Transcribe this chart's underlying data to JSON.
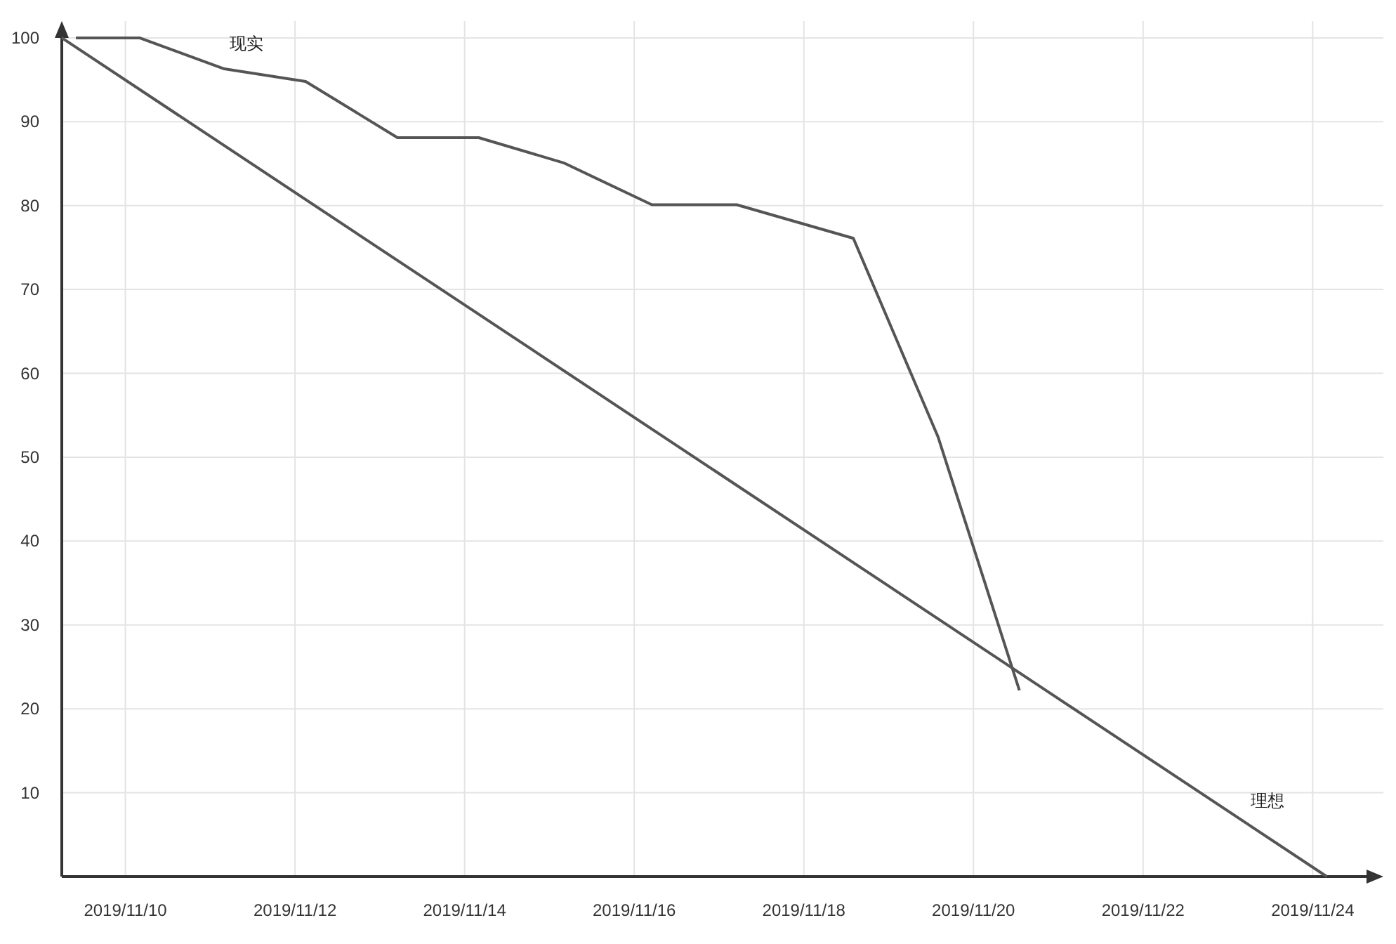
{
  "chart_data": {
    "type": "line",
    "grid": true,
    "legend": false,
    "marker": "none",
    "line_style": "solid",
    "xlim": [
      "2019-11-09T06:00",
      "2019-11-24T20:00"
    ],
    "ylim": [
      0,
      102
    ],
    "xticks": [
      {
        "value": "2019-11-10",
        "label": "2019/11/10"
      },
      {
        "value": "2019-11-12",
        "label": "2019/11/12"
      },
      {
        "value": "2019-11-14",
        "label": "2019/11/14"
      },
      {
        "value": "2019-11-16",
        "label": "2019/11/16"
      },
      {
        "value": "2019-11-18",
        "label": "2019/11/18"
      },
      {
        "value": "2019-11-20",
        "label": "2019/11/20"
      },
      {
        "value": "2019-11-22",
        "label": "2019/11/22"
      },
      {
        "value": "2019-11-24",
        "label": "2019/11/24"
      }
    ],
    "yticks": [
      10,
      20,
      30,
      40,
      50,
      60,
      70,
      80,
      90,
      100
    ],
    "series": [
      {
        "name": "现实",
        "color": "#555555",
        "x": [
          "2019-11-09T10:00",
          "2019-11-10T04:00",
          "2019-11-11T04:00",
          "2019-11-12T03:00",
          "2019-11-13T05:00",
          "2019-11-14T04:00",
          "2019-11-15T04:00",
          "2019-11-16T05:00",
          "2019-11-17T05:00",
          "2019-11-18T14:00",
          "2019-11-19T14:00",
          "2019-11-20T13:00"
        ],
        "values": [
          100,
          100,
          96.3,
          94.8,
          88.1,
          88.1,
          85.1,
          80.1,
          80.1,
          76.1,
          52.4,
          22.2
        ]
      },
      {
        "name": "理想",
        "color": "#555555",
        "x": [
          "2019-11-09T06:00",
          "2019-11-24T04:00"
        ],
        "values": [
          100,
          0
        ]
      }
    ]
  }
}
